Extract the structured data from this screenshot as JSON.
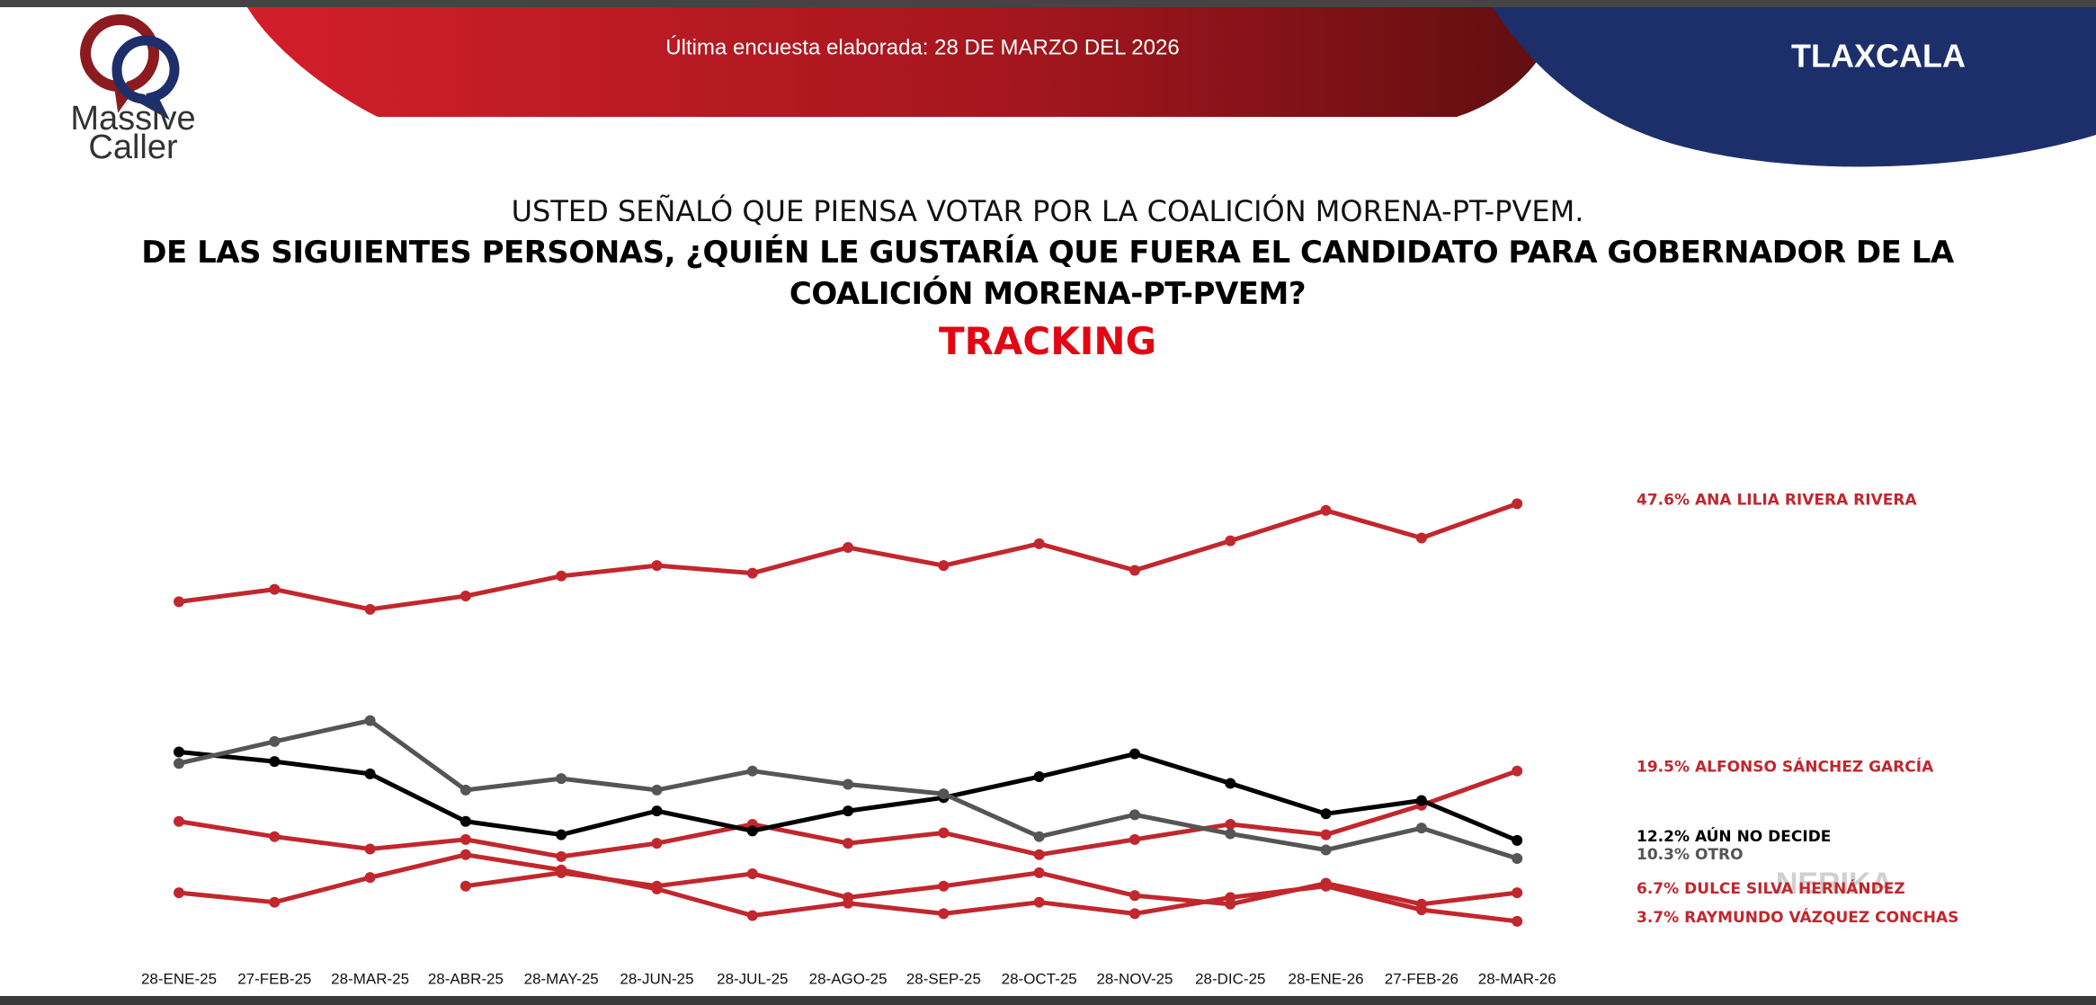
{
  "header": {
    "survey_date": "Última encuesta elaborada: 28 DE MARZO DEL 2026",
    "state": "TLAXCALA",
    "logo_line1": "Massive",
    "logo_line2": "Caller"
  },
  "chart_data": {
    "type": "line",
    "subtitle": "USTED SEÑALÓ QUE PIENSA VOTAR POR LA COALICIÓN MORENA-PT-PVEM.",
    "title": "DE LAS SIGUIENTES PERSONAS, ¿QUIÉN LE GUSTARÍA QUE FUERA EL CANDIDATO PARA GOBERNADOR DE LA COALICIÓN MORENA-PT-PVEM?",
    "tracking": "TRACKING",
    "watermark": "NERIKA",
    "categories": [
      "28-ENE-25",
      "27-FEB-25",
      "28-MAR-25",
      "28-ABR-25",
      "28-MAY-25",
      "28-JUN-25",
      "28-JUL-25",
      "28-AGO-25",
      "28-SEP-25",
      "28-OCT-25",
      "28-NOV-25",
      "28-DIC-25",
      "28-ENE-26",
      "27-FEB-26",
      "28-MAR-26"
    ],
    "series": [
      {
        "name": "ANA LILIA RIVERA RIVERA",
        "color": "#c1272d",
        "values": [
          37.3,
          38.6,
          36.5,
          37.9,
          40.0,
          41.1,
          40.3,
          43.0,
          41.1,
          43.4,
          40.6,
          43.7,
          46.9,
          44.0,
          47.6
        ],
        "value_labels": [
          null,
          null,
          null,
          null,
          null,
          null,
          null,
          null,
          null,
          null,
          null,
          null,
          null,
          null,
          "47.6%"
        ]
      },
      {
        "name": "ALFONSO SÁNCHEZ GARCÍA",
        "color": "#c1272d",
        "values": [
          14.2,
          12.6,
          11.3,
          12.3,
          10.5,
          11.9,
          13.9,
          11.9,
          13.0,
          10.7,
          12.3,
          13.9,
          12.8,
          15.9,
          19.5
        ],
        "value_labels": [
          null,
          null,
          null,
          null,
          null,
          null,
          null,
          null,
          null,
          null,
          null,
          null,
          null,
          null,
          "19.5%"
        ]
      },
      {
        "name": "AÚN NO DECIDE",
        "color": "#000000",
        "values": [
          21.5,
          20.5,
          19.2,
          14.2,
          12.8,
          15.3,
          13.2,
          15.3,
          16.7,
          18.9,
          21.3,
          18.2,
          15.0,
          16.4,
          12.2
        ],
        "value_labels": [
          null,
          null,
          null,
          null,
          null,
          null,
          null,
          null,
          null,
          null,
          null,
          null,
          null,
          null,
          "12.2%"
        ]
      },
      {
        "name": "OTRO",
        "color": "#555555",
        "values": [
          20.3,
          22.6,
          24.8,
          17.5,
          18.7,
          17.5,
          19.5,
          18.1,
          17.1,
          12.6,
          14.9,
          12.9,
          11.2,
          13.5,
          10.3
        ],
        "value_labels": [
          null,
          null,
          null,
          null,
          null,
          null,
          null,
          null,
          null,
          null,
          null,
          null,
          null,
          null,
          "10.3%"
        ]
      },
      {
        "name": "DULCE SILVA HERNÁNDEZ",
        "color": "#c1272d",
        "values": [
          null,
          null,
          null,
          7.4,
          8.8,
          7.4,
          8.7,
          6.2,
          7.4,
          8.8,
          6.4,
          5.5,
          7.7,
          5.5,
          6.7
        ],
        "value_labels": [
          null,
          null,
          null,
          null,
          null,
          null,
          null,
          null,
          null,
          null,
          null,
          null,
          null,
          null,
          "6.7%"
        ]
      },
      {
        "name": "RAYMUNDO VÁZQUEZ CONCHAS",
        "color": "#c1272d",
        "values": [
          6.7,
          5.7,
          8.3,
          10.7,
          9.1,
          7.1,
          4.3,
          5.6,
          4.5,
          5.7,
          4.5,
          6.2,
          7.4,
          4.9,
          3.7
        ],
        "value_labels": [
          null,
          null,
          null,
          null,
          null,
          null,
          null,
          null,
          null,
          null,
          null,
          null,
          null,
          null,
          "3.7%"
        ]
      }
    ]
  }
}
